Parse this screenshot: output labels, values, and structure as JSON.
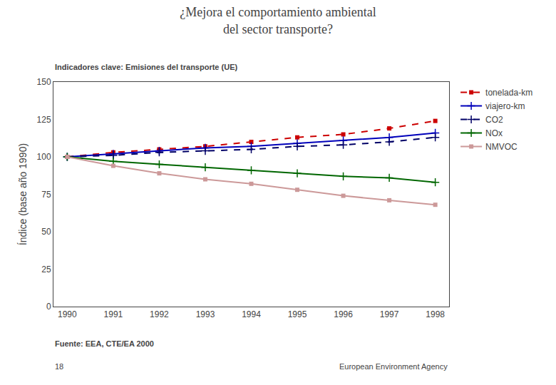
{
  "chart_data": {
    "type": "line",
    "title": "¿Mejora el comportamiento ambiental\ndel sector transporte?",
    "subtitle": "Indicadores clave: Emisiones del transporte (UE)",
    "ylabel": "Índice (base año 1990)",
    "x": [
      1990,
      1991,
      1992,
      1993,
      1994,
      1995,
      1996,
      1997,
      1998
    ],
    "series": [
      {
        "name": "tonelada-km",
        "color": "#cc0000",
        "line_style": "dashed",
        "marker": "square",
        "values": [
          100,
          103,
          105,
          107,
          110,
          113,
          115,
          119,
          124
        ]
      },
      {
        "name": "viajero-km",
        "color": "#0000bb",
        "line_style": "solid",
        "marker": "plus",
        "values": [
          100,
          102,
          104,
          106,
          107,
          109,
          111,
          113,
          116
        ]
      },
      {
        "name": "CO2",
        "color": "#000066",
        "line_style": "dashed",
        "marker": "plus",
        "values": [
          100,
          101,
          103,
          104,
          105,
          107,
          108,
          110,
          113
        ]
      },
      {
        "name": "NOx",
        "color": "#006600",
        "line_style": "solid",
        "marker": "plus",
        "values": [
          100,
          97,
          95,
          93,
          91,
          89,
          87,
          86,
          83
        ]
      },
      {
        "name": "NMVOC",
        "color": "#cc9999",
        "line_style": "solid",
        "marker": "square",
        "values": [
          100,
          94,
          89,
          85,
          82,
          78,
          74,
          71,
          68
        ]
      }
    ],
    "xlim": [
      1989.7,
      1998.3
    ],
    "xticks": [
      1990,
      1991,
      1992,
      1993,
      1994,
      1995,
      1996,
      1997,
      1998
    ],
    "ylim": [
      0,
      150
    ],
    "yticks": [
      0,
      25,
      50,
      75,
      100,
      125,
      150
    ],
    "grid": false,
    "legend": "right",
    "annotations": [
      "Fuente: EEA, CTE/EA 2000",
      "18",
      "European Environment Agency"
    ]
  }
}
